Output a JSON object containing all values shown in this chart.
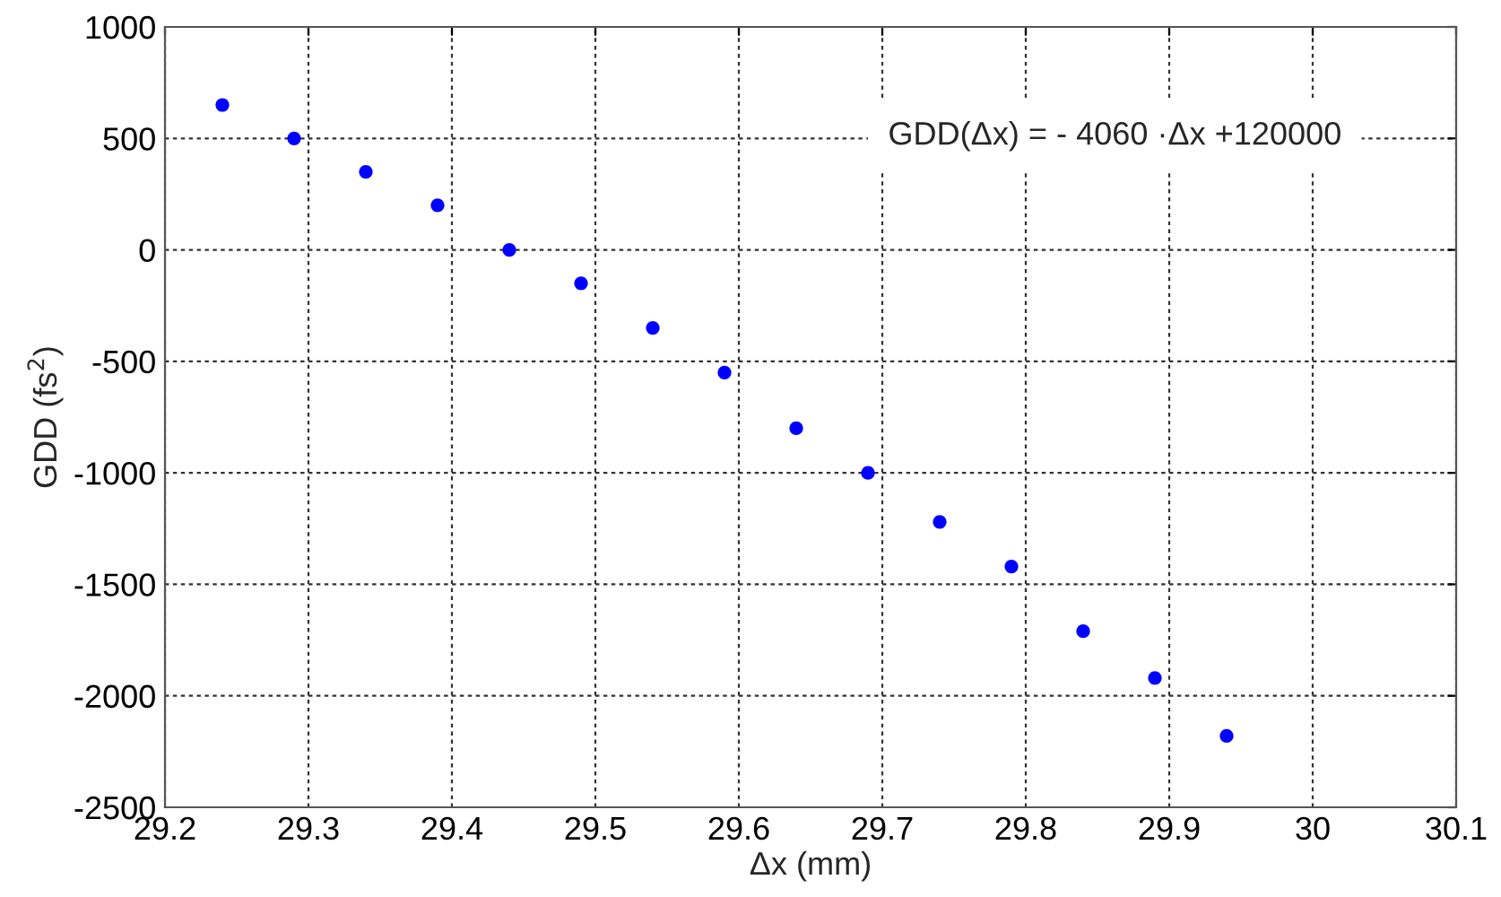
{
  "chart_data": {
    "type": "scatter",
    "xlabel": "Δx (mm)",
    "ylabel": "GDD (fs$^{2}$)",
    "annotations": [
      "GDD(Δx) = - 4060 ·Δx +120000"
    ],
    "x": [
      29.24,
      29.29,
      29.34,
      29.39,
      29.44,
      29.49,
      29.54,
      29.59,
      29.64,
      29.69,
      29.74,
      29.79,
      29.84,
      29.89,
      29.94
    ],
    "series": [
      {
        "color": "#0000ff",
        "values": [
          650,
          500,
          350,
          200,
          0,
          -150,
          -350,
          -550,
          -800,
          -1000,
          -1220,
          -1420,
          -1710,
          -1920,
          -2180
        ]
      }
    ],
    "xlim": [
      29.2,
      30.1
    ],
    "xticks": [
      29.2,
      29.3,
      29.4,
      29.5,
      29.6,
      29.7,
      29.8,
      29.9,
      30,
      30.1
    ],
    "ylim": [
      -2500,
      1000
    ],
    "yticks": [
      -2500,
      -2000,
      -1500,
      -1000,
      -500,
      0,
      500,
      1000
    ],
    "grid": true,
    "marker": "circle",
    "legend": false
  }
}
